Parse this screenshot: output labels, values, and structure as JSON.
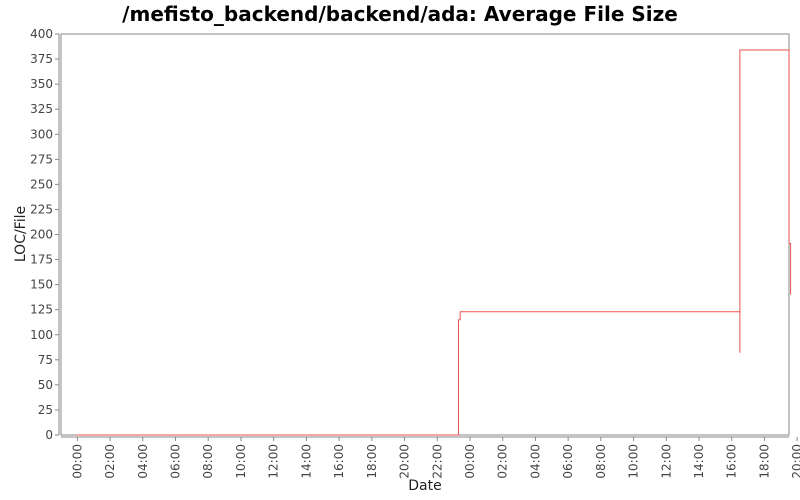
{
  "chart_data": {
    "type": "line",
    "title": "/mefisto_backend/backend/ada: Average File Size",
    "xlabel": "Date",
    "ylabel": "LOC/File",
    "ylim": [
      0,
      400
    ],
    "y_ticks": [
      0,
      25,
      50,
      75,
      100,
      125,
      150,
      175,
      200,
      225,
      250,
      275,
      300,
      325,
      350,
      375,
      400
    ],
    "x_unit": "hours",
    "xlim": [
      -1,
      43.5
    ],
    "x_ticks": [
      {
        "t": 0,
        "label": "00:00"
      },
      {
        "t": 2,
        "label": "02:00"
      },
      {
        "t": 4,
        "label": "04:00"
      },
      {
        "t": 6,
        "label": "06:00"
      },
      {
        "t": 8,
        "label": "08:00"
      },
      {
        "t": 10,
        "label": "10:00"
      },
      {
        "t": 12,
        "label": "12:00"
      },
      {
        "t": 14,
        "label": "14:00"
      },
      {
        "t": 16,
        "label": "16:00"
      },
      {
        "t": 18,
        "label": "18:00"
      },
      {
        "t": 20,
        "label": "20:00"
      },
      {
        "t": 22,
        "label": "22:00"
      },
      {
        "t": 24,
        "label": "00:00"
      },
      {
        "t": 26,
        "label": "02:00"
      },
      {
        "t": 28,
        "label": "04:00"
      },
      {
        "t": 30,
        "label": "06:00"
      },
      {
        "t": 32,
        "label": "08:00"
      },
      {
        "t": 34,
        "label": "10:00"
      },
      {
        "t": 36,
        "label": "12:00"
      },
      {
        "t": 38,
        "label": "14:00"
      },
      {
        "t": 40,
        "label": "16:00"
      },
      {
        "t": 42,
        "label": "18:00"
      },
      {
        "t": 44,
        "label": "20:00"
      }
    ],
    "grid": false,
    "series": [
      {
        "color": "#e8534f",
        "points": [
          [
            -0.1,
            0
          ],
          [
            23.3,
            0
          ],
          [
            23.3,
            115
          ],
          [
            23.4,
            115
          ],
          [
            23.4,
            123
          ],
          [
            40.5,
            123
          ],
          [
            40.5,
            82
          ],
          [
            40.5,
            384
          ],
          [
            43.5,
            384
          ],
          [
            43.5,
            191
          ],
          [
            43.6,
            191
          ],
          [
            43.6,
            140
          ]
        ]
      }
    ]
  }
}
